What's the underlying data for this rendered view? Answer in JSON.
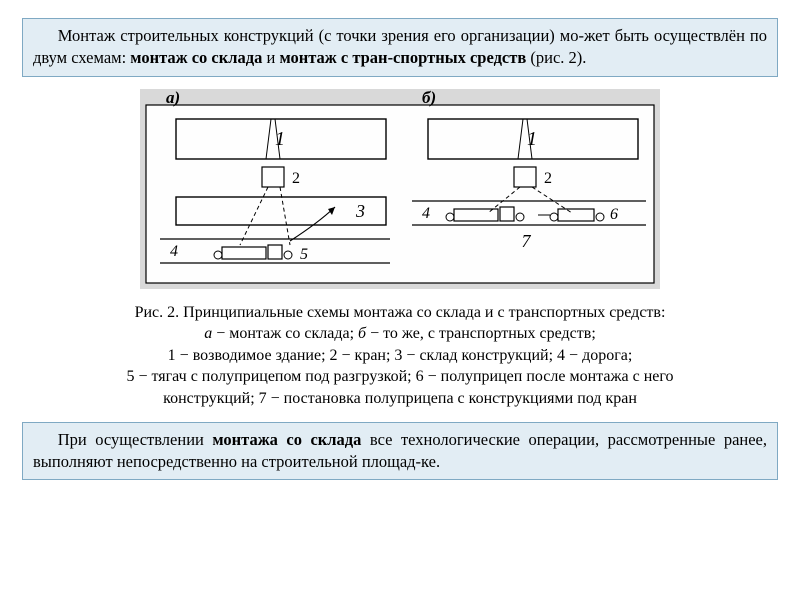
{
  "colors": {
    "box_bg": "#e2edf4",
    "box_border": "#7fa9c3",
    "text": "#000000",
    "fig_bg": "#ffffff",
    "fig_line": "#000000",
    "fig_panel_bg": "#d9d9d9",
    "fig_inner_bg": "#fefefe"
  },
  "intro_box": {
    "parts": [
      {
        "t": "Монтаж строительных конструкций (с точки зрения его организации) мо-жет быть осуществлён по двум схемам: ",
        "b": false
      },
      {
        "t": "монтаж со склада",
        "b": true
      },
      {
        "t": " и ",
        "b": false
      },
      {
        "t": "монтаж с тран-спортных средств",
        "b": true
      },
      {
        "t": " (рис. 2).",
        "b": false
      }
    ]
  },
  "figure": {
    "label_a": "а)",
    "label_b": "б)",
    "n1a": "1",
    "n1b": "1",
    "n2a": "2",
    "n2b": "2",
    "n3": "3",
    "n4a": "4",
    "n4b": "4",
    "n5": "5",
    "n6": "6",
    "n7": "7"
  },
  "caption": {
    "l1": "Рис. 2. Принципиальные схемы монтажа со склада и с транспортных средств:",
    "l2_pre": "",
    "l2_a": "а",
    "l2_mid": " − монтаж со склада; ",
    "l2_b": "б",
    "l2_post": " − то же, с транспортных средств;",
    "l3": "1 − возводимое здание; 2 − кран; 3 − склад конструкций; 4 − дорога;",
    "l4": "5 − тягач с полуприцепом под разгрузкой; 6 − полуприцеп после монтажа с него",
    "l5": "конструкций; 7 − постановка полуприцепа с конструкциями под кран"
  },
  "outro_box": {
    "parts": [
      {
        "t": "При осуществлении ",
        "b": false
      },
      {
        "t": "монтажа со склада",
        "b": true
      },
      {
        "t": " все технологические операции, рассмотренные ранее, выполняют непосредственно на строительной площад-ке.",
        "b": false
      }
    ]
  }
}
